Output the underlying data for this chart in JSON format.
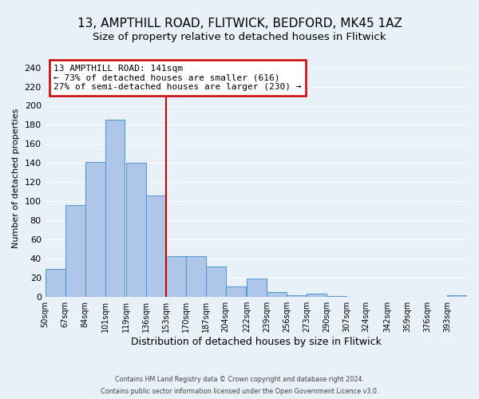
{
  "title": "13, AMPTHILL ROAD, FLITWICK, BEDFORD, MK45 1AZ",
  "subtitle": "Size of property relative to detached houses in Flitwick",
  "xlabel": "Distribution of detached houses by size in Flitwick",
  "ylabel": "Number of detached properties",
  "bin_labels": [
    "50sqm",
    "67sqm",
    "84sqm",
    "101sqm",
    "119sqm",
    "136sqm",
    "153sqm",
    "170sqm",
    "187sqm",
    "204sqm",
    "222sqm",
    "239sqm",
    "256sqm",
    "273sqm",
    "290sqm",
    "307sqm",
    "324sqm",
    "342sqm",
    "359sqm",
    "376sqm",
    "393sqm"
  ],
  "bin_edges": [
    50,
    67,
    84,
    101,
    119,
    136,
    153,
    170,
    187,
    204,
    222,
    239,
    256,
    273,
    290,
    307,
    324,
    342,
    359,
    376,
    393
  ],
  "bar_heights": [
    29,
    96,
    141,
    185,
    140,
    106,
    43,
    43,
    32,
    11,
    19,
    5,
    2,
    3,
    1,
    0,
    0,
    0,
    0,
    0,
    2
  ],
  "bar_color": "#aec6e8",
  "bar_edgecolor": "#5b9bd5",
  "property_line_color": "#cc0000",
  "annotation_line1": "13 AMPTHILL ROAD: 141sqm",
  "annotation_line2": "← 73% of detached houses are smaller (616)",
  "annotation_line3": "27% of semi-detached houses are larger (230) →",
  "ylim": [
    0,
    248
  ],
  "yticks": [
    0,
    20,
    40,
    60,
    80,
    100,
    120,
    140,
    160,
    180,
    200,
    220,
    240
  ],
  "footer_line1": "Contains HM Land Registry data © Crown copyright and database right 2024.",
  "footer_line2": "Contains public sector information licensed under the Open Government Licence v3.0.",
  "background_color": "#e8f0f8",
  "grid_color": "#ffffff",
  "title_fontsize": 11,
  "subtitle_fontsize": 9.5
}
